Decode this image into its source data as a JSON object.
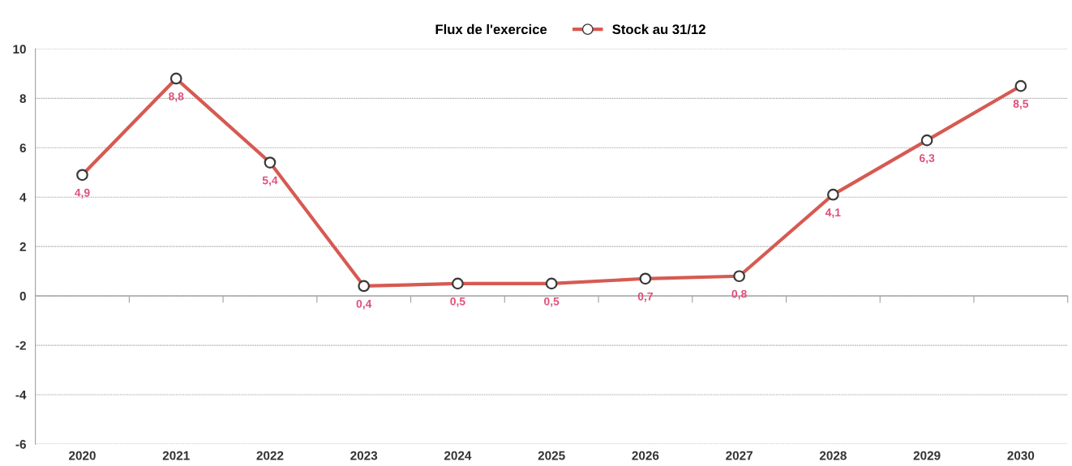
{
  "chart_data": {
    "type": "line",
    "categories": [
      "2020",
      "2021",
      "2022",
      "2023",
      "2024",
      "2025",
      "2026",
      "2027",
      "2028",
      "2029",
      "2030"
    ],
    "series": [
      {
        "name": "Flux de l'exercice",
        "type": "bar",
        "values": [
          null,
          null,
          null,
          null,
          null,
          null,
          null,
          null,
          null,
          null,
          null
        ]
      },
      {
        "name": "Stock au 31/12",
        "color": "#d65a52",
        "marker": "circle",
        "values": [
          4.9,
          8.8,
          5.4,
          0.4,
          0.5,
          0.5,
          0.7,
          0.8,
          4.1,
          6.3,
          8.5
        ],
        "value_labels": [
          "4,9",
          "8,8",
          "5,4",
          "0,4",
          "0,5",
          "0,5",
          "0,7",
          "0,8",
          "4,1",
          "6,3",
          "8,5"
        ]
      }
    ],
    "ylim": [
      -6,
      10
    ],
    "yticks": [
      -6,
      -4,
      -2,
      0,
      2,
      4,
      6,
      8,
      10
    ],
    "grid": "y",
    "legend": "top"
  }
}
